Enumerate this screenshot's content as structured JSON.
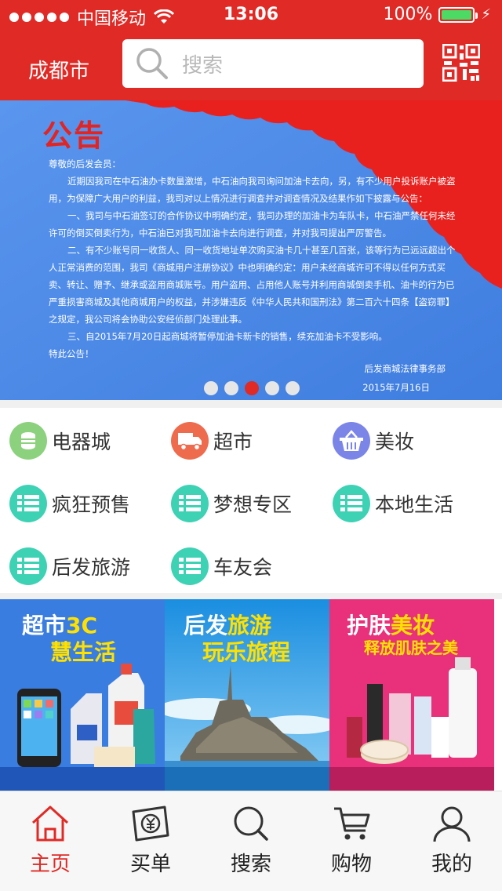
{
  "status_bar": {
    "carrier": "中国移动",
    "time": "13:06",
    "battery": "100%"
  },
  "header": {
    "city": "成都市",
    "search_placeholder": "搜索"
  },
  "banner": {
    "title": "公告",
    "greeting": "尊敬的后发会员：",
    "paragraphs": [
      "近期因我司在中石油办卡数量激增，中石油向我司询问加油卡去向，另，有不少用户投诉账户被盗用，为保障广大用户的利益，我司对以上情况进行调查并对调查情况及结果作如下披露与公告：",
      "一、我司与中石油签订的合作协议中明确约定，我司办理的加油卡为车队卡，中石油严禁任何未经许可的倒买倒卖行为，中石油已对我司加油卡去向进行调查，并对我司提出严厉警告。",
      "二、有不少账号同一收货人、同一收货地址单次购买油卡几十甚至几百张，该等行为已远远超出个人正常消费的范围，我司《商城用户注册协议》中也明确约定：用户未经商城许可不得以任何方式买卖、转让、赠予、继承或盗用商城账号。用户盗用、占用他人账号并利用商城倒卖手机、油卡的行为已严重损害商城及其他商城用户的权益，并涉嫌违反《中华人民共和国刑法》第二百六十四条【盗窃罪】之规定，我公司将会协助公安经侦部门处理此事。",
      "三、自2015年7月20日起商城将暂停加油卡新卡的销售，续充加油卡不受影响。"
    ],
    "closing": "特此公告！",
    "signature": "后发商城法律事务部",
    "date": "2015年7月16日",
    "pages": 5,
    "active_page": 3
  },
  "categories": [
    {
      "label": "电器城",
      "icon": "coins-icon",
      "color": "#8cd17e"
    },
    {
      "label": "超市",
      "icon": "truck-icon",
      "color": "#ee6b4d"
    },
    {
      "label": "美妆",
      "icon": "basket-icon",
      "color": "#7b85e8"
    },
    {
      "label": "疯狂预售",
      "icon": "list-icon",
      "color": "#3ed2b5"
    },
    {
      "label": "梦想专区",
      "icon": "list-icon",
      "color": "#3ed2b5"
    },
    {
      "label": "本地生活",
      "icon": "list-icon",
      "color": "#3ed2b5"
    },
    {
      "label": "后发旅游",
      "icon": "list-icon",
      "color": "#3ed2b5"
    },
    {
      "label": "车友会",
      "icon": "list-icon",
      "color": "#3ed2b5"
    }
  ],
  "promos": [
    {
      "line1a": "超市",
      "line1b": "3C",
      "line2": "慧生活",
      "bg": "#3a7de0"
    },
    {
      "line1a": "后发",
      "line1b": "旅游",
      "line2": "玩乐旅程",
      "bg": "#1aa0e8"
    },
    {
      "line1a": "护肤",
      "line1b": "美妆",
      "line2": "释放肌肤之美",
      "bg": "#e8317a"
    }
  ],
  "tabbar": [
    {
      "label": "主页",
      "icon": "home-icon",
      "active": true
    },
    {
      "label": "买单",
      "icon": "yen-card-icon",
      "active": false
    },
    {
      "label": "搜索",
      "icon": "search-icon",
      "active": false
    },
    {
      "label": "购物",
      "icon": "cart-icon",
      "active": false
    },
    {
      "label": "我的",
      "icon": "user-icon",
      "active": false
    }
  ]
}
